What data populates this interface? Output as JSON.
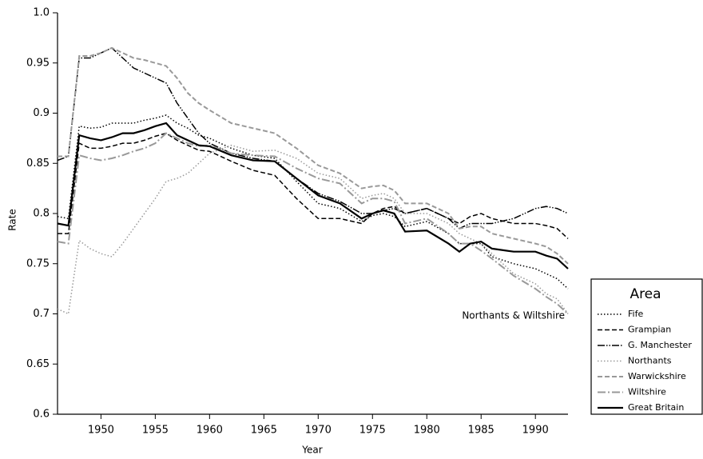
{
  "chart_data": {
    "type": "line",
    "x_label": "Year",
    "y_label": "Rate",
    "annotation": "Northants & Wiltshire",
    "legend_title": "Area",
    "legend": "right",
    "xlim": [
      1946,
      1993
    ],
    "xticks": [
      1950,
      1955,
      1960,
      1965,
      1970,
      1975,
      1980,
      1985,
      1990
    ],
    "ylim": [
      0.6,
      1.0
    ],
    "yticks": [
      0.6,
      0.65,
      0.7,
      0.75,
      0.8,
      0.85,
      0.9,
      0.95,
      {
        "value": 1.0,
        "label": "1.0"
      }
    ],
    "x": [
      1946,
      1947,
      1948,
      1949,
      1950,
      1951,
      1952,
      1953,
      1954,
      1955,
      1956,
      1957,
      1958,
      1959,
      1960,
      1962,
      1964,
      1966,
      1968,
      1970,
      1972,
      1974,
      1975,
      1976,
      1977,
      1978,
      1980,
      1982,
      1983,
      1984,
      1985,
      1986,
      1988,
      1990,
      1991,
      1992,
      1993
    ],
    "series": [
      {
        "name": "Fife",
        "color": "#000000",
        "dash": "1.5,2.5",
        "width": 1.5,
        "values": [
          0.797,
          0.795,
          0.887,
          0.885,
          0.886,
          0.89,
          0.89,
          0.89,
          0.893,
          0.895,
          0.898,
          0.89,
          0.885,
          0.878,
          0.875,
          0.865,
          0.858,
          0.855,
          0.832,
          0.81,
          0.805,
          0.792,
          0.798,
          0.8,
          0.797,
          0.787,
          0.792,
          0.78,
          0.77,
          0.77,
          0.77,
          0.757,
          0.75,
          0.745,
          0.74,
          0.735,
          0.725
        ]
      },
      {
        "name": "Grampian",
        "color": "#000000",
        "dash": "6,3",
        "width": 1.5,
        "values": [
          0.78,
          0.78,
          0.87,
          0.865,
          0.865,
          0.867,
          0.87,
          0.87,
          0.873,
          0.877,
          0.88,
          0.873,
          0.868,
          0.863,
          0.862,
          0.852,
          0.843,
          0.838,
          0.815,
          0.795,
          0.795,
          0.79,
          0.8,
          0.805,
          0.807,
          0.8,
          0.805,
          0.795,
          0.79,
          0.797,
          0.8,
          0.795,
          0.79,
          0.79,
          0.788,
          0.785,
          0.775
        ]
      },
      {
        "name": "G. Manchester",
        "color": "#000000",
        "dash": "9,2,1.5,2,1.5,2",
        "width": 1.5,
        "values": [
          0.853,
          0.857,
          0.955,
          0.955,
          0.96,
          0.965,
          0.955,
          0.945,
          0.94,
          0.935,
          0.93,
          0.91,
          0.895,
          0.88,
          0.87,
          0.86,
          0.855,
          0.852,
          0.835,
          0.82,
          0.812,
          0.8,
          0.8,
          0.803,
          0.805,
          0.8,
          0.805,
          0.795,
          0.785,
          0.79,
          0.79,
          0.79,
          0.795,
          0.805,
          0.807,
          0.805,
          0.8
        ]
      },
      {
        "name": "Northants",
        "color": "#999999",
        "dash": "1.5,2.5",
        "width": 1.5,
        "values": [
          0.705,
          0.7,
          0.773,
          0.765,
          0.76,
          0.757,
          0.77,
          0.785,
          0.8,
          0.815,
          0.832,
          0.835,
          0.84,
          0.85,
          0.86,
          0.868,
          0.862,
          0.863,
          0.855,
          0.84,
          0.835,
          0.815,
          0.818,
          0.82,
          0.815,
          0.8,
          0.8,
          0.79,
          0.78,
          0.775,
          0.77,
          0.76,
          0.74,
          0.73,
          0.72,
          0.715,
          0.7
        ]
      },
      {
        "name": "Warwickshire",
        "color": "#999999",
        "dash": "6,3",
        "width": 2,
        "values": [
          0.857,
          0.857,
          0.957,
          0.957,
          0.96,
          0.965,
          0.96,
          0.955,
          0.953,
          0.95,
          0.947,
          0.935,
          0.92,
          0.91,
          0.903,
          0.89,
          0.885,
          0.88,
          0.865,
          0.848,
          0.84,
          0.825,
          0.827,
          0.828,
          0.823,
          0.81,
          0.81,
          0.8,
          0.785,
          0.787,
          0.787,
          0.78,
          0.775,
          0.77,
          0.767,
          0.76,
          0.75
        ]
      },
      {
        "name": "Wiltshire",
        "color": "#999999",
        "dash": "10,3,2,3",
        "width": 2,
        "values": [
          0.772,
          0.77,
          0.858,
          0.855,
          0.853,
          0.855,
          0.858,
          0.862,
          0.865,
          0.87,
          0.88,
          0.875,
          0.87,
          0.867,
          0.868,
          0.86,
          0.858,
          0.857,
          0.845,
          0.835,
          0.83,
          0.81,
          0.815,
          0.815,
          0.812,
          0.79,
          0.795,
          0.78,
          0.77,
          0.77,
          0.763,
          0.755,
          0.738,
          0.725,
          0.717,
          0.71,
          0.7
        ]
      },
      {
        "name": "Great Britain",
        "color": "#000000",
        "dash": "none",
        "width": 2.2,
        "values": [
          0.79,
          0.788,
          0.878,
          0.875,
          0.873,
          0.876,
          0.88,
          0.88,
          0.883,
          0.887,
          0.89,
          0.878,
          0.873,
          0.868,
          0.867,
          0.858,
          0.853,
          0.852,
          0.835,
          0.818,
          0.81,
          0.795,
          0.8,
          0.803,
          0.8,
          0.782,
          0.783,
          0.77,
          0.762,
          0.77,
          0.772,
          0.765,
          0.762,
          0.762,
          0.758,
          0.755,
          0.745
        ]
      }
    ]
  }
}
